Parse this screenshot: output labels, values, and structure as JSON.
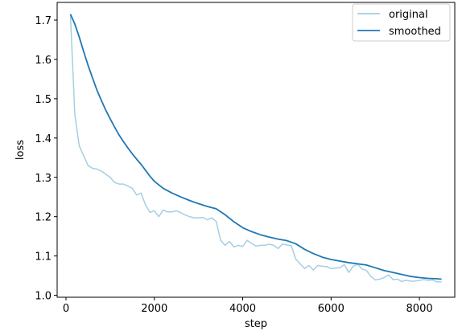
{
  "chart_data": {
    "type": "line",
    "title": "",
    "xlabel": "step",
    "ylabel": "loss",
    "xlim": [
      -200,
      8800
    ],
    "ylim": [
      0.995,
      1.745
    ],
    "x_ticks": [
      0,
      2000,
      4000,
      6000,
      8000
    ],
    "y_ticks": [
      1.0,
      1.1,
      1.2,
      1.3,
      1.4,
      1.5,
      1.6,
      1.7
    ],
    "x_tick_labels": [
      "0",
      "2000",
      "4000",
      "6000",
      "8000"
    ],
    "y_tick_labels": [
      "1.0",
      "1.1",
      "1.2",
      "1.3",
      "1.4",
      "1.5",
      "1.6",
      "1.7"
    ],
    "legend_position": "top-right",
    "grid": false,
    "series": [
      {
        "name": "original",
        "color": "#a6cee3",
        "x": [
          100,
          200,
          300,
          400,
          500,
          600,
          700,
          800,
          900,
          1000,
          1100,
          1200,
          1300,
          1400,
          1500,
          1600,
          1700,
          1800,
          1900,
          2000,
          2100,
          2200,
          2300,
          2400,
          2500,
          2600,
          2700,
          2800,
          2900,
          3000,
          3100,
          3200,
          3300,
          3400,
          3500,
          3600,
          3700,
          3800,
          3900,
          4000,
          4100,
          4200,
          4300,
          4400,
          4500,
          4600,
          4700,
          4800,
          4900,
          5000,
          5100,
          5200,
          5300,
          5400,
          5500,
          5600,
          5700,
          5800,
          5900,
          6000,
          6100,
          6200,
          6300,
          6400,
          6500,
          6600,
          6700,
          6800,
          6900,
          7000,
          7100,
          7200,
          7300,
          7400,
          7500,
          7600,
          7700,
          7800,
          7900,
          8000,
          8100,
          8200,
          8300,
          8400,
          8500
        ],
        "y": [
          1.715,
          1.46,
          1.38,
          1.355,
          1.33,
          1.323,
          1.321,
          1.316,
          1.308,
          1.3,
          1.287,
          1.283,
          1.283,
          1.278,
          1.272,
          1.255,
          1.26,
          1.23,
          1.211,
          1.215,
          1.2,
          1.217,
          1.212,
          1.212,
          1.215,
          1.21,
          1.204,
          1.2,
          1.197,
          1.197,
          1.198,
          1.192,
          1.197,
          1.188,
          1.14,
          1.127,
          1.137,
          1.123,
          1.127,
          1.124,
          1.14,
          1.132,
          1.125,
          1.127,
          1.127,
          1.13,
          1.127,
          1.119,
          1.13,
          1.128,
          1.126,
          1.092,
          1.08,
          1.068,
          1.076,
          1.064,
          1.076,
          1.074,
          1.073,
          1.068,
          1.069,
          1.07,
          1.078,
          1.058,
          1.074,
          1.079,
          1.067,
          1.063,
          1.048,
          1.039,
          1.041,
          1.045,
          1.052,
          1.04,
          1.041,
          1.035,
          1.038,
          1.036,
          1.036,
          1.038,
          1.04,
          1.038,
          1.039,
          1.034,
          1.034
        ]
      },
      {
        "name": "smoothed",
        "color": "#1f78b4",
        "x": [
          100,
          200,
          300,
          400,
          500,
          600,
          700,
          800,
          900,
          1000,
          1100,
          1200,
          1300,
          1400,
          1500,
          1600,
          1700,
          1800,
          1900,
          2000,
          2200,
          2400,
          2600,
          2800,
          3000,
          3200,
          3400,
          3600,
          3800,
          4000,
          4200,
          4400,
          4600,
          4800,
          5000,
          5200,
          5400,
          5600,
          5800,
          6000,
          6200,
          6400,
          6600,
          6800,
          7000,
          7200,
          7400,
          7600,
          7800,
          8000,
          8200,
          8400,
          8500
        ],
        "y": [
          1.715,
          1.69,
          1.657,
          1.62,
          1.585,
          1.553,
          1.522,
          1.496,
          1.471,
          1.449,
          1.428,
          1.408,
          1.391,
          1.375,
          1.36,
          1.346,
          1.333,
          1.318,
          1.303,
          1.29,
          1.272,
          1.26,
          1.25,
          1.241,
          1.233,
          1.226,
          1.22,
          1.205,
          1.187,
          1.172,
          1.162,
          1.154,
          1.148,
          1.143,
          1.139,
          1.131,
          1.117,
          1.106,
          1.097,
          1.091,
          1.087,
          1.083,
          1.08,
          1.077,
          1.07,
          1.063,
          1.058,
          1.053,
          1.048,
          1.045,
          1.043,
          1.042,
          1.041
        ]
      }
    ]
  }
}
